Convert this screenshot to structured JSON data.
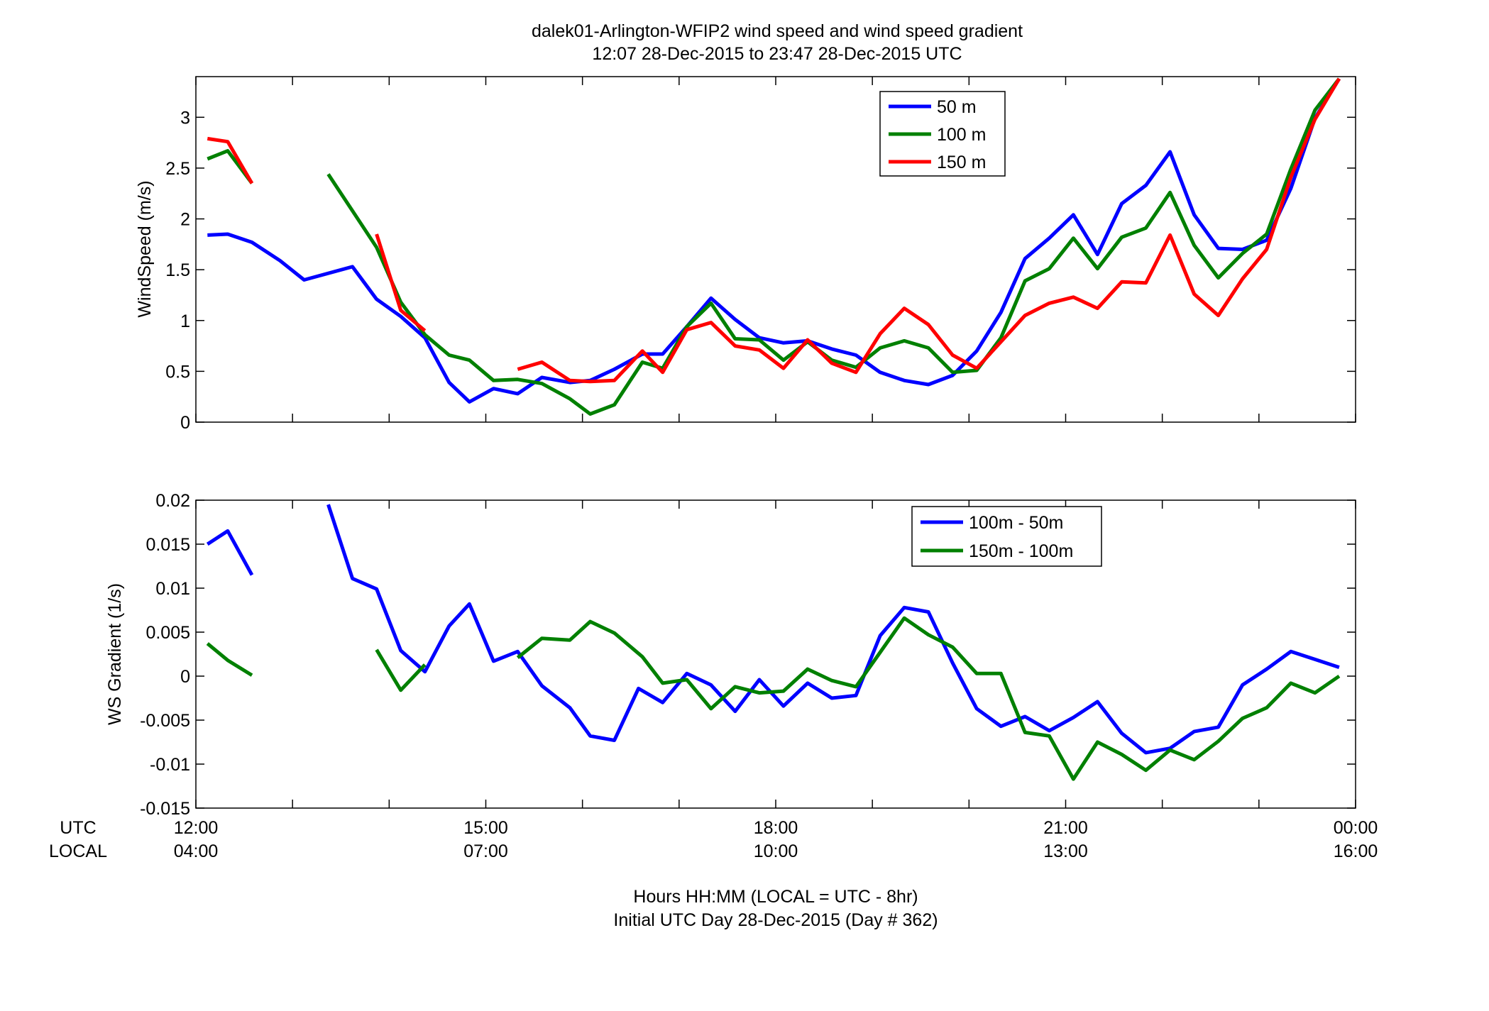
{
  "title_line1": "dalek01-Arlington-WFIP2  wind speed and wind speed gradient",
  "title_line2": "12:07 28-Dec-2015 to 23:47 28-Dec-2015  UTC",
  "xaxis": {
    "row1_label": "UTC",
    "row2_label": "LOCAL",
    "hours": [
      12,
      13,
      14,
      15,
      16,
      17,
      18,
      19,
      20,
      21,
      22,
      23,
      24
    ],
    "labels_utc": [
      "12:00",
      "15:00",
      "18:00",
      "21:00",
      "00:00"
    ],
    "labels_local": [
      "04:00",
      "07:00",
      "10:00",
      "13:00",
      "16:00"
    ],
    "label_hours": [
      12,
      15,
      18,
      21,
      24
    ],
    "xlabel_line1": "Hours HH:MM  (LOCAL = UTC - 8hr)",
    "xlabel_line2": "Initial UTC Day 28-Dec-2015 (Day # 362)"
  },
  "chart_data": [
    {
      "type": "line",
      "ylabel": "WindSpeed (m/s)",
      "xlim": [
        12,
        24
      ],
      "ylim": [
        0,
        3.4
      ],
      "yticks": [
        0,
        0.5,
        1,
        1.5,
        2,
        2.5,
        3
      ],
      "yticklabels": [
        "0",
        "0.5",
        "1",
        "1.5",
        "2",
        "2.5",
        "3"
      ],
      "legend_position": "top-right",
      "series": [
        {
          "name": "50 m",
          "color": "#0000ff",
          "points": [
            [
              12.12,
              1.84
            ],
            [
              12.33,
              1.85
            ],
            [
              12.58,
              1.77
            ],
            [
              12.87,
              1.59
            ],
            [
              13.12,
              1.4
            ],
            [
              13.62,
              1.53
            ],
            [
              13.87,
              1.21
            ],
            [
              14.12,
              1.04
            ],
            [
              14.37,
              0.83
            ],
            [
              14.62,
              0.39
            ],
            [
              14.83,
              0.2
            ],
            [
              15.08,
              0.33
            ],
            [
              15.33,
              0.28
            ],
            [
              15.58,
              0.44
            ],
            [
              15.87,
              0.39
            ],
            [
              16.08,
              0.41
            ],
            [
              16.33,
              0.52
            ],
            [
              16.62,
              0.67
            ],
            [
              16.83,
              0.67
            ],
            [
              17.08,
              0.94
            ],
            [
              17.33,
              1.22
            ],
            [
              17.58,
              1.01
            ],
            [
              17.83,
              0.83
            ],
            [
              18.08,
              0.78
            ],
            [
              18.33,
              0.8
            ],
            [
              18.58,
              0.72
            ],
            [
              18.83,
              0.66
            ],
            [
              19.08,
              0.49
            ],
            [
              19.33,
              0.41
            ],
            [
              19.58,
              0.37
            ],
            [
              19.83,
              0.46
            ],
            [
              20.08,
              0.7
            ],
            [
              20.33,
              1.08
            ],
            [
              20.58,
              1.61
            ],
            [
              20.83,
              1.81
            ],
            [
              21.08,
              2.04
            ],
            [
              21.33,
              1.65
            ],
            [
              21.58,
              2.15
            ],
            [
              21.83,
              2.33
            ],
            [
              22.08,
              2.66
            ],
            [
              22.33,
              2.04
            ],
            [
              22.58,
              1.71
            ],
            [
              22.83,
              1.7
            ],
            [
              23.08,
              1.79
            ],
            [
              23.33,
              2.3
            ],
            [
              23.58,
              2.99
            ],
            [
              23.83,
              3.38
            ]
          ]
        },
        {
          "name": "100 m",
          "color": "#008000",
          "points": [
            [
              12.12,
              2.59
            ],
            [
              12.33,
              2.67
            ],
            [
              12.58,
              2.35
            ],
            null,
            [
              13.37,
              2.44
            ],
            [
              13.87,
              1.72
            ],
            [
              14.12,
              1.18
            ],
            [
              14.37,
              0.86
            ],
            [
              14.62,
              0.66
            ],
            [
              14.83,
              0.61
            ],
            [
              15.08,
              0.41
            ],
            [
              15.33,
              0.42
            ],
            [
              15.58,
              0.38
            ],
            [
              15.87,
              0.23
            ],
            [
              16.08,
              0.08
            ],
            [
              16.33,
              0.17
            ],
            [
              16.62,
              0.59
            ],
            [
              16.83,
              0.53
            ],
            [
              17.08,
              0.94
            ],
            [
              17.33,
              1.17
            ],
            [
              17.58,
              0.82
            ],
            [
              17.83,
              0.81
            ],
            [
              18.08,
              0.61
            ],
            [
              18.33,
              0.79
            ],
            [
              18.58,
              0.61
            ],
            [
              18.83,
              0.54
            ],
            [
              19.08,
              0.73
            ],
            [
              19.33,
              0.8
            ],
            [
              19.58,
              0.73
            ],
            [
              19.83,
              0.49
            ],
            [
              20.08,
              0.51
            ],
            [
              20.33,
              0.83
            ],
            [
              20.58,
              1.39
            ],
            [
              20.83,
              1.51
            ],
            [
              21.08,
              1.81
            ],
            [
              21.33,
              1.51
            ],
            [
              21.58,
              1.82
            ],
            [
              21.83,
              1.91
            ],
            [
              22.08,
              2.26
            ],
            [
              22.33,
              1.74
            ],
            [
              22.58,
              1.42
            ],
            [
              22.83,
              1.66
            ],
            [
              23.08,
              1.85
            ],
            [
              23.33,
              2.49
            ],
            [
              23.58,
              3.07
            ],
            [
              23.83,
              3.38
            ]
          ]
        },
        {
          "name": "150 m",
          "color": "#ff0000",
          "points": [
            [
              12.12,
              2.79
            ],
            [
              12.33,
              2.76
            ],
            [
              12.58,
              2.35
            ],
            null,
            [
              13.87,
              1.85
            ],
            [
              14.12,
              1.1
            ],
            [
              14.37,
              0.9
            ],
            null,
            [
              15.33,
              0.52
            ],
            [
              15.58,
              0.59
            ],
            [
              15.87,
              0.41
            ],
            [
              16.08,
              0.4
            ],
            [
              16.33,
              0.41
            ],
            [
              16.62,
              0.7
            ],
            [
              16.83,
              0.49
            ],
            [
              17.08,
              0.91
            ],
            [
              17.33,
              0.98
            ],
            [
              17.58,
              0.75
            ],
            [
              17.83,
              0.71
            ],
            [
              18.08,
              0.53
            ],
            [
              18.33,
              0.81
            ],
            [
              18.58,
              0.58
            ],
            [
              18.83,
              0.49
            ],
            [
              19.08,
              0.87
            ],
            [
              19.33,
              1.12
            ],
            [
              19.58,
              0.96
            ],
            [
              19.83,
              0.66
            ],
            [
              20.08,
              0.53
            ],
            [
              20.33,
              0.79
            ],
            [
              20.58,
              1.05
            ],
            [
              20.83,
              1.17
            ],
            [
              21.08,
              1.23
            ],
            [
              21.33,
              1.12
            ],
            [
              21.58,
              1.38
            ],
            [
              21.83,
              1.37
            ],
            [
              22.08,
              1.84
            ],
            [
              22.33,
              1.26
            ],
            [
              22.58,
              1.05
            ],
            [
              22.83,
              1.41
            ],
            [
              23.08,
              1.7
            ],
            [
              23.33,
              2.41
            ],
            [
              23.58,
              2.98
            ],
            [
              23.83,
              3.38
            ]
          ]
        }
      ]
    },
    {
      "type": "line",
      "ylabel": "WS Gradient (1/s)",
      "xlim": [
        12,
        24
      ],
      "ylim": [
        -0.015,
        0.02
      ],
      "yticks": [
        -0.015,
        -0.01,
        -0.005,
        0,
        0.005,
        0.01,
        0.015,
        0.02
      ],
      "yticklabels": [
        "-0.015",
        "-0.01",
        "-0.005",
        "0",
        "0.005",
        "0.01",
        "0.015",
        "0.02"
      ],
      "legend_position": "top-right",
      "series": [
        {
          "name": "100m - 50m",
          "color": "#0000ff",
          "points": [
            [
              12.12,
              0.015
            ],
            [
              12.33,
              0.0165
            ],
            [
              12.58,
              0.0115
            ],
            null,
            [
              13.37,
              0.0195
            ],
            [
              13.62,
              0.0111
            ],
            [
              13.87,
              0.0099
            ],
            [
              14.12,
              0.0029
            ],
            [
              14.37,
              0.0005
            ],
            [
              14.62,
              0.0057
            ],
            [
              14.83,
              0.0082
            ],
            [
              15.08,
              0.0017
            ],
            [
              15.33,
              0.0028
            ],
            [
              15.58,
              -0.0011
            ],
            [
              15.87,
              -0.0036
            ],
            [
              16.08,
              -0.0068
            ],
            [
              16.33,
              -0.0073
            ],
            [
              16.58,
              -0.0014
            ],
            [
              16.83,
              -0.003
            ],
            [
              17.08,
              0.0003
            ],
            [
              17.33,
              -0.001
            ],
            [
              17.58,
              -0.004
            ],
            [
              17.83,
              -0.0004
            ],
            [
              18.08,
              -0.0034
            ],
            [
              18.33,
              -0.0008
            ],
            [
              18.58,
              -0.0025
            ],
            [
              18.83,
              -0.0022
            ],
            [
              19.08,
              0.0046
            ],
            [
              19.33,
              0.0078
            ],
            [
              19.58,
              0.0073
            ],
            [
              19.83,
              0.0015
            ],
            [
              20.08,
              -0.0037
            ],
            [
              20.33,
              -0.0057
            ],
            [
              20.58,
              -0.0046
            ],
            [
              20.83,
              -0.0062
            ],
            [
              21.08,
              -0.0047
            ],
            [
              21.33,
              -0.0029
            ],
            [
              21.58,
              -0.0065
            ],
            [
              21.83,
              -0.0087
            ],
            [
              22.08,
              -0.0082
            ],
            [
              22.33,
              -0.0063
            ],
            [
              22.58,
              -0.0058
            ],
            [
              22.83,
              -0.001
            ],
            [
              23.08,
              0.0008
            ],
            [
              23.33,
              0.0028
            ],
            [
              23.58,
              0.0019
            ],
            [
              23.83,
              0.001
            ]
          ]
        },
        {
          "name": "150m - 100m",
          "color": "#008000",
          "points": [
            [
              12.12,
              0.0037
            ],
            [
              12.33,
              0.0018
            ],
            [
              12.58,
              0.0001
            ],
            null,
            [
              13.87,
              0.003
            ],
            [
              14.12,
              -0.0016
            ],
            [
              14.37,
              0.0013
            ],
            null,
            [
              15.33,
              0.0021
            ],
            [
              15.58,
              0.0043
            ],
            [
              15.87,
              0.0041
            ],
            [
              16.08,
              0.0062
            ],
            [
              16.33,
              0.0049
            ],
            [
              16.62,
              0.0022
            ],
            [
              16.83,
              -0.0008
            ],
            [
              17.08,
              -0.0004
            ],
            [
              17.33,
              -0.0037
            ],
            [
              17.58,
              -0.0012
            ],
            [
              17.83,
              -0.0019
            ],
            [
              18.08,
              -0.0017
            ],
            [
              18.33,
              0.0008
            ],
            [
              18.58,
              -0.0005
            ],
            [
              18.83,
              -0.0012
            ],
            [
              19.08,
              0.0027
            ],
            [
              19.33,
              0.0066
            ],
            [
              19.58,
              0.0047
            ],
            [
              19.83,
              0.0033
            ],
            [
              20.08,
              0.0003
            ],
            [
              20.33,
              0.0003
            ],
            [
              20.58,
              -0.0064
            ],
            [
              20.83,
              -0.0068
            ],
            [
              21.08,
              -0.0117
            ],
            [
              21.33,
              -0.0075
            ],
            [
              21.58,
              -0.0089
            ],
            [
              21.83,
              -0.0107
            ],
            [
              22.08,
              -0.0084
            ],
            [
              22.33,
              -0.0095
            ],
            [
              22.58,
              -0.0074
            ],
            [
              22.83,
              -0.0048
            ],
            [
              23.08,
              -0.0036
            ],
            [
              23.33,
              -0.0008
            ],
            [
              23.58,
              -0.0019
            ],
            [
              23.83,
              0.0
            ]
          ]
        }
      ]
    }
  ]
}
